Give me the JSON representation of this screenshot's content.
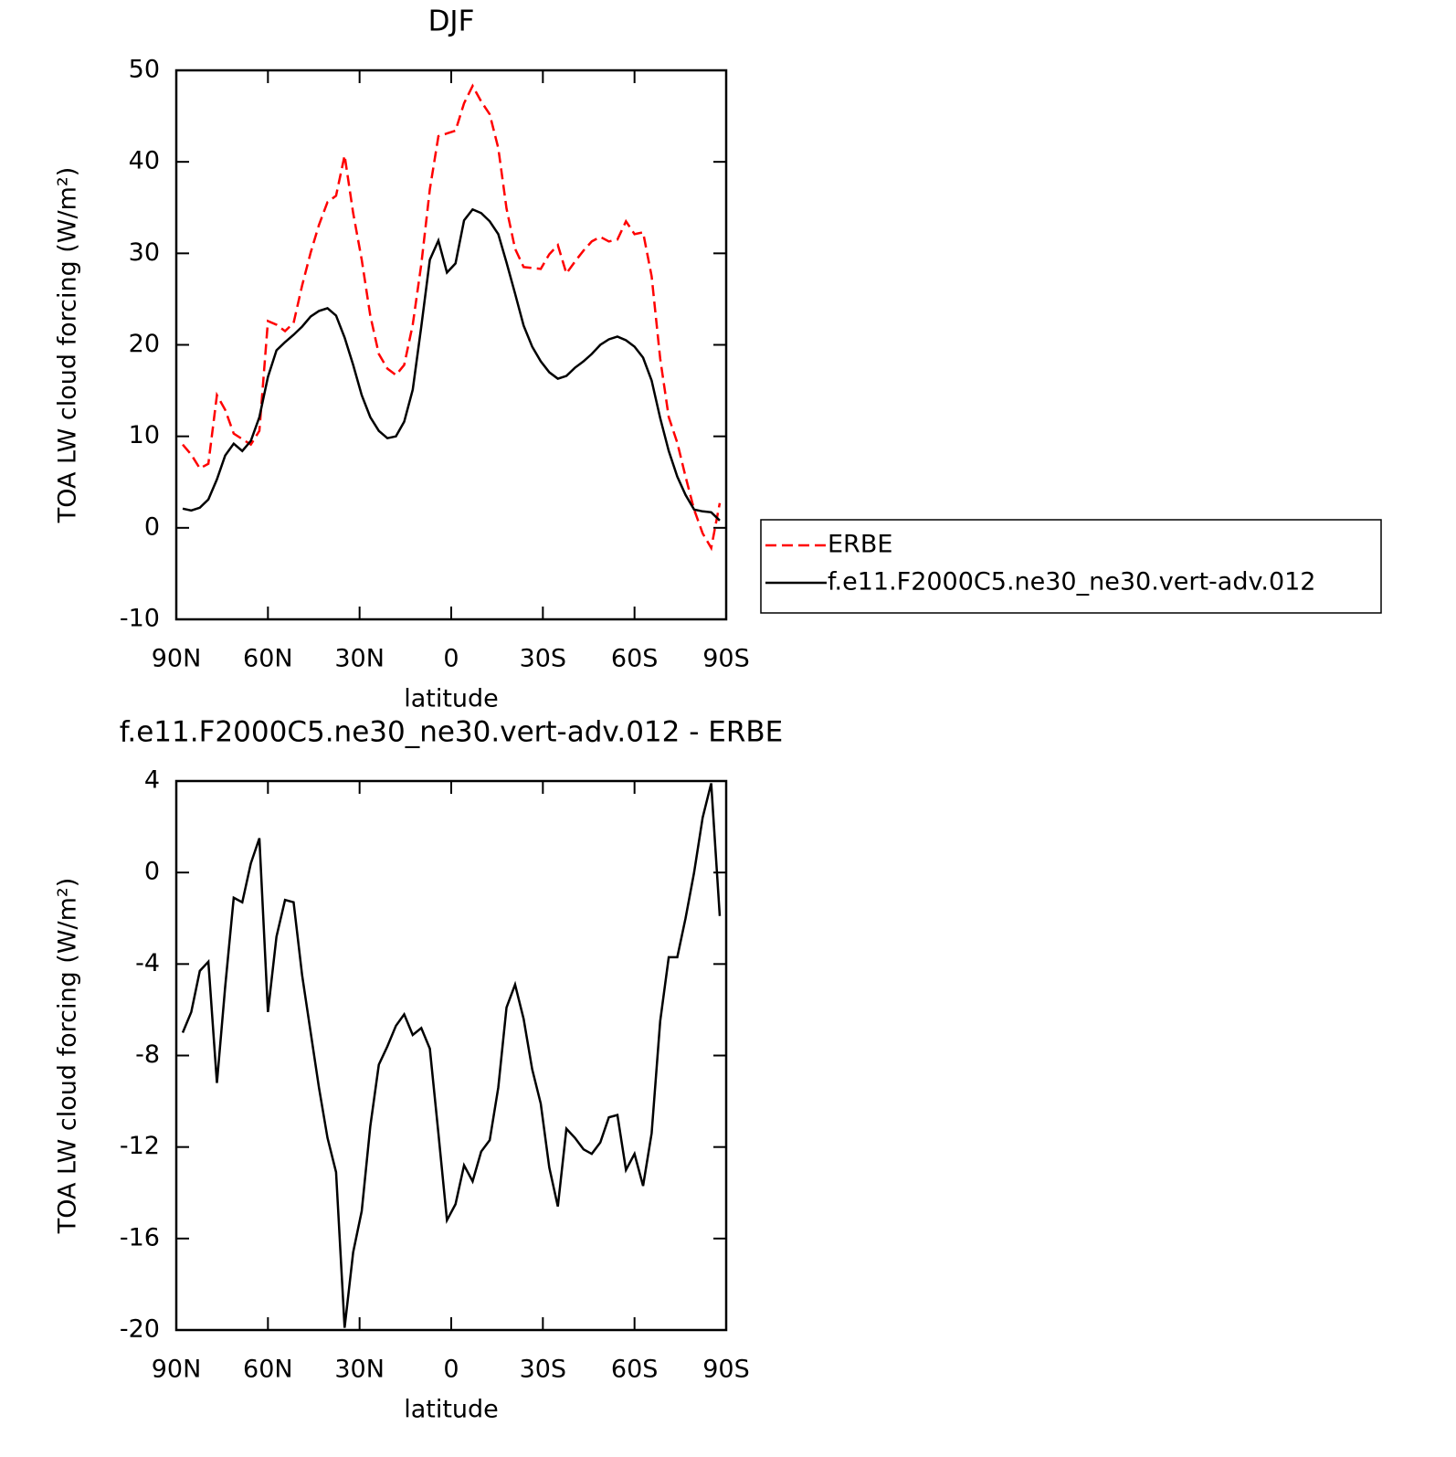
{
  "chart_data": [
    {
      "type": "line",
      "title": "DJF",
      "x_label": "latitude",
      "y_label": "TOA LW cloud forcing (W/m²)",
      "x": [
        87.9,
        85.1,
        82.3,
        79.5,
        76.7,
        74.0,
        71.2,
        68.4,
        65.6,
        62.8,
        60.0,
        57.2,
        54.4,
        51.6,
        48.8,
        46.0,
        43.3,
        40.5,
        37.7,
        34.9,
        32.1,
        29.3,
        26.5,
        23.7,
        20.9,
        18.1,
        15.4,
        12.6,
        9.8,
        7.0,
        4.2,
        1.4,
        -1.4,
        -4.2,
        -7.0,
        -9.8,
        -12.6,
        -15.4,
        -18.1,
        -20.9,
        -23.7,
        -26.5,
        -29.3,
        -32.1,
        -34.9,
        -37.7,
        -40.5,
        -43.3,
        -46.0,
        -48.8,
        -51.6,
        -54.4,
        -57.2,
        -60.0,
        -62.8,
        -65.6,
        -68.4,
        -71.2,
        -74.0,
        -76.7,
        -79.5,
        -82.3,
        -85.1,
        -87.9
      ],
      "xlim": [
        90,
        -90
      ],
      "xticks": [
        {
          "value": 90,
          "label": "90N"
        },
        {
          "value": 60,
          "label": "60N"
        },
        {
          "value": 30,
          "label": "30N"
        },
        0,
        {
          "value": -30,
          "label": "30S"
        },
        {
          "value": -60,
          "label": "60S"
        },
        {
          "value": -90,
          "label": "90S"
        }
      ],
      "ylim": [
        -10,
        50
      ],
      "yticks": [
        -10,
        0,
        10,
        20,
        30,
        40,
        50
      ],
      "legend": "right",
      "series": [
        {
          "name": "ERBE",
          "color": "#ff0000",
          "line_style": "dashed",
          "values": [
            9.1,
            8.0,
            6.5,
            7.0,
            14.5,
            12.9,
            10.3,
            9.7,
            9.1,
            10.6,
            22.6,
            22.2,
            21.5,
            22.4,
            26.5,
            30.1,
            33.1,
            35.6,
            36.3,
            40.7,
            34.4,
            29.3,
            23.2,
            19.0,
            17.4,
            16.7,
            17.8,
            22.2,
            28.8,
            37.0,
            42.8,
            43.1,
            43.4,
            46.4,
            48.3,
            46.6,
            45.2,
            41.5,
            34.9,
            30.5,
            28.5,
            28.4,
            28.3,
            29.9,
            30.9,
            27.8,
            29.1,
            30.3,
            31.3,
            31.8,
            31.3,
            31.5,
            33.5,
            32.1,
            32.3,
            27.5,
            18.5,
            12.1,
            9.3,
            5.6,
            2.0,
            -0.6,
            -2.2,
            2.7
          ]
        },
        {
          "name": "f.e11.F2000C5.ne30_ne30.vert-adv.012",
          "color": "#000000",
          "line_style": "solid",
          "values": [
            2.1,
            1.9,
            2.2,
            3.1,
            5.3,
            7.9,
            9.2,
            8.4,
            9.5,
            12.1,
            16.5,
            19.4,
            20.3,
            21.1,
            22.0,
            23.1,
            23.7,
            24.0,
            23.2,
            20.8,
            17.8,
            14.5,
            12.1,
            10.6,
            9.8,
            10.0,
            11.6,
            15.1,
            22.0,
            29.3,
            31.4,
            27.9,
            28.9,
            33.6,
            34.8,
            34.4,
            33.5,
            32.1,
            29.0,
            25.6,
            22.1,
            19.8,
            18.2,
            17.0,
            16.3,
            16.6,
            17.5,
            18.2,
            19.0,
            20.0,
            20.6,
            20.9,
            20.5,
            19.8,
            18.6,
            16.1,
            12.0,
            8.4,
            5.6,
            3.6,
            2.0,
            1.8,
            1.7,
            0.8
          ]
        }
      ]
    },
    {
      "type": "line",
      "title": "f.e11.F2000C5.ne30_ne30.vert-adv.012 - ERBE",
      "x_label": "latitude",
      "y_label": "TOA LW cloud forcing (W/m²)",
      "x": [
        87.9,
        85.1,
        82.3,
        79.5,
        76.7,
        74.0,
        71.2,
        68.4,
        65.6,
        62.8,
        60.0,
        57.2,
        54.4,
        51.6,
        48.8,
        46.0,
        43.3,
        40.5,
        37.7,
        34.9,
        32.1,
        29.3,
        26.5,
        23.7,
        20.9,
        18.1,
        15.4,
        12.6,
        9.8,
        7.0,
        4.2,
        1.4,
        -1.4,
        -4.2,
        -7.0,
        -9.8,
        -12.6,
        -15.4,
        -18.1,
        -20.9,
        -23.7,
        -26.5,
        -29.3,
        -32.1,
        -34.9,
        -37.7,
        -40.5,
        -43.3,
        -46.0,
        -48.8,
        -51.6,
        -54.4,
        -57.2,
        -60.0,
        -62.8,
        -65.6,
        -68.4,
        -71.2,
        -74.0,
        -76.7,
        -79.5,
        -82.3,
        -85.1,
        -87.9
      ],
      "xlim": [
        90,
        -90
      ],
      "xticks": [
        {
          "value": 90,
          "label": "90N"
        },
        {
          "value": 60,
          "label": "60N"
        },
        {
          "value": 30,
          "label": "30N"
        },
        0,
        {
          "value": -30,
          "label": "30S"
        },
        {
          "value": -60,
          "label": "60S"
        },
        {
          "value": -90,
          "label": "90S"
        }
      ],
      "ylim": [
        -20,
        4
      ],
      "yticks": [
        4,
        0,
        -4,
        -8,
        -12,
        -16,
        -20
      ],
      "color": "#000000",
      "values": [
        -7.0,
        -6.1,
        -4.3,
        -3.9,
        -9.2,
        -5.0,
        -1.1,
        -1.3,
        0.4,
        1.5,
        -6.1,
        -2.8,
        -1.2,
        -1.3,
        -4.5,
        -7.0,
        -9.4,
        -11.6,
        -13.1,
        -19.9,
        -16.6,
        -14.8,
        -11.1,
        -8.4,
        -7.6,
        -6.7,
        -6.2,
        -7.1,
        -6.8,
        -7.7,
        -11.4,
        -15.2,
        -14.5,
        -12.8,
        -13.5,
        -12.2,
        -11.7,
        -9.4,
        -5.9,
        -4.9,
        -6.4,
        -8.6,
        -10.1,
        -12.9,
        -14.6,
        -11.2,
        -11.6,
        -12.1,
        -12.3,
        -11.8,
        -10.7,
        -10.6,
        -13.0,
        -12.3,
        -13.7,
        -11.4,
        -6.5,
        -3.7,
        -3.7,
        -2.0,
        0.0,
        2.4,
        3.9,
        -1.9
      ]
    }
  ]
}
